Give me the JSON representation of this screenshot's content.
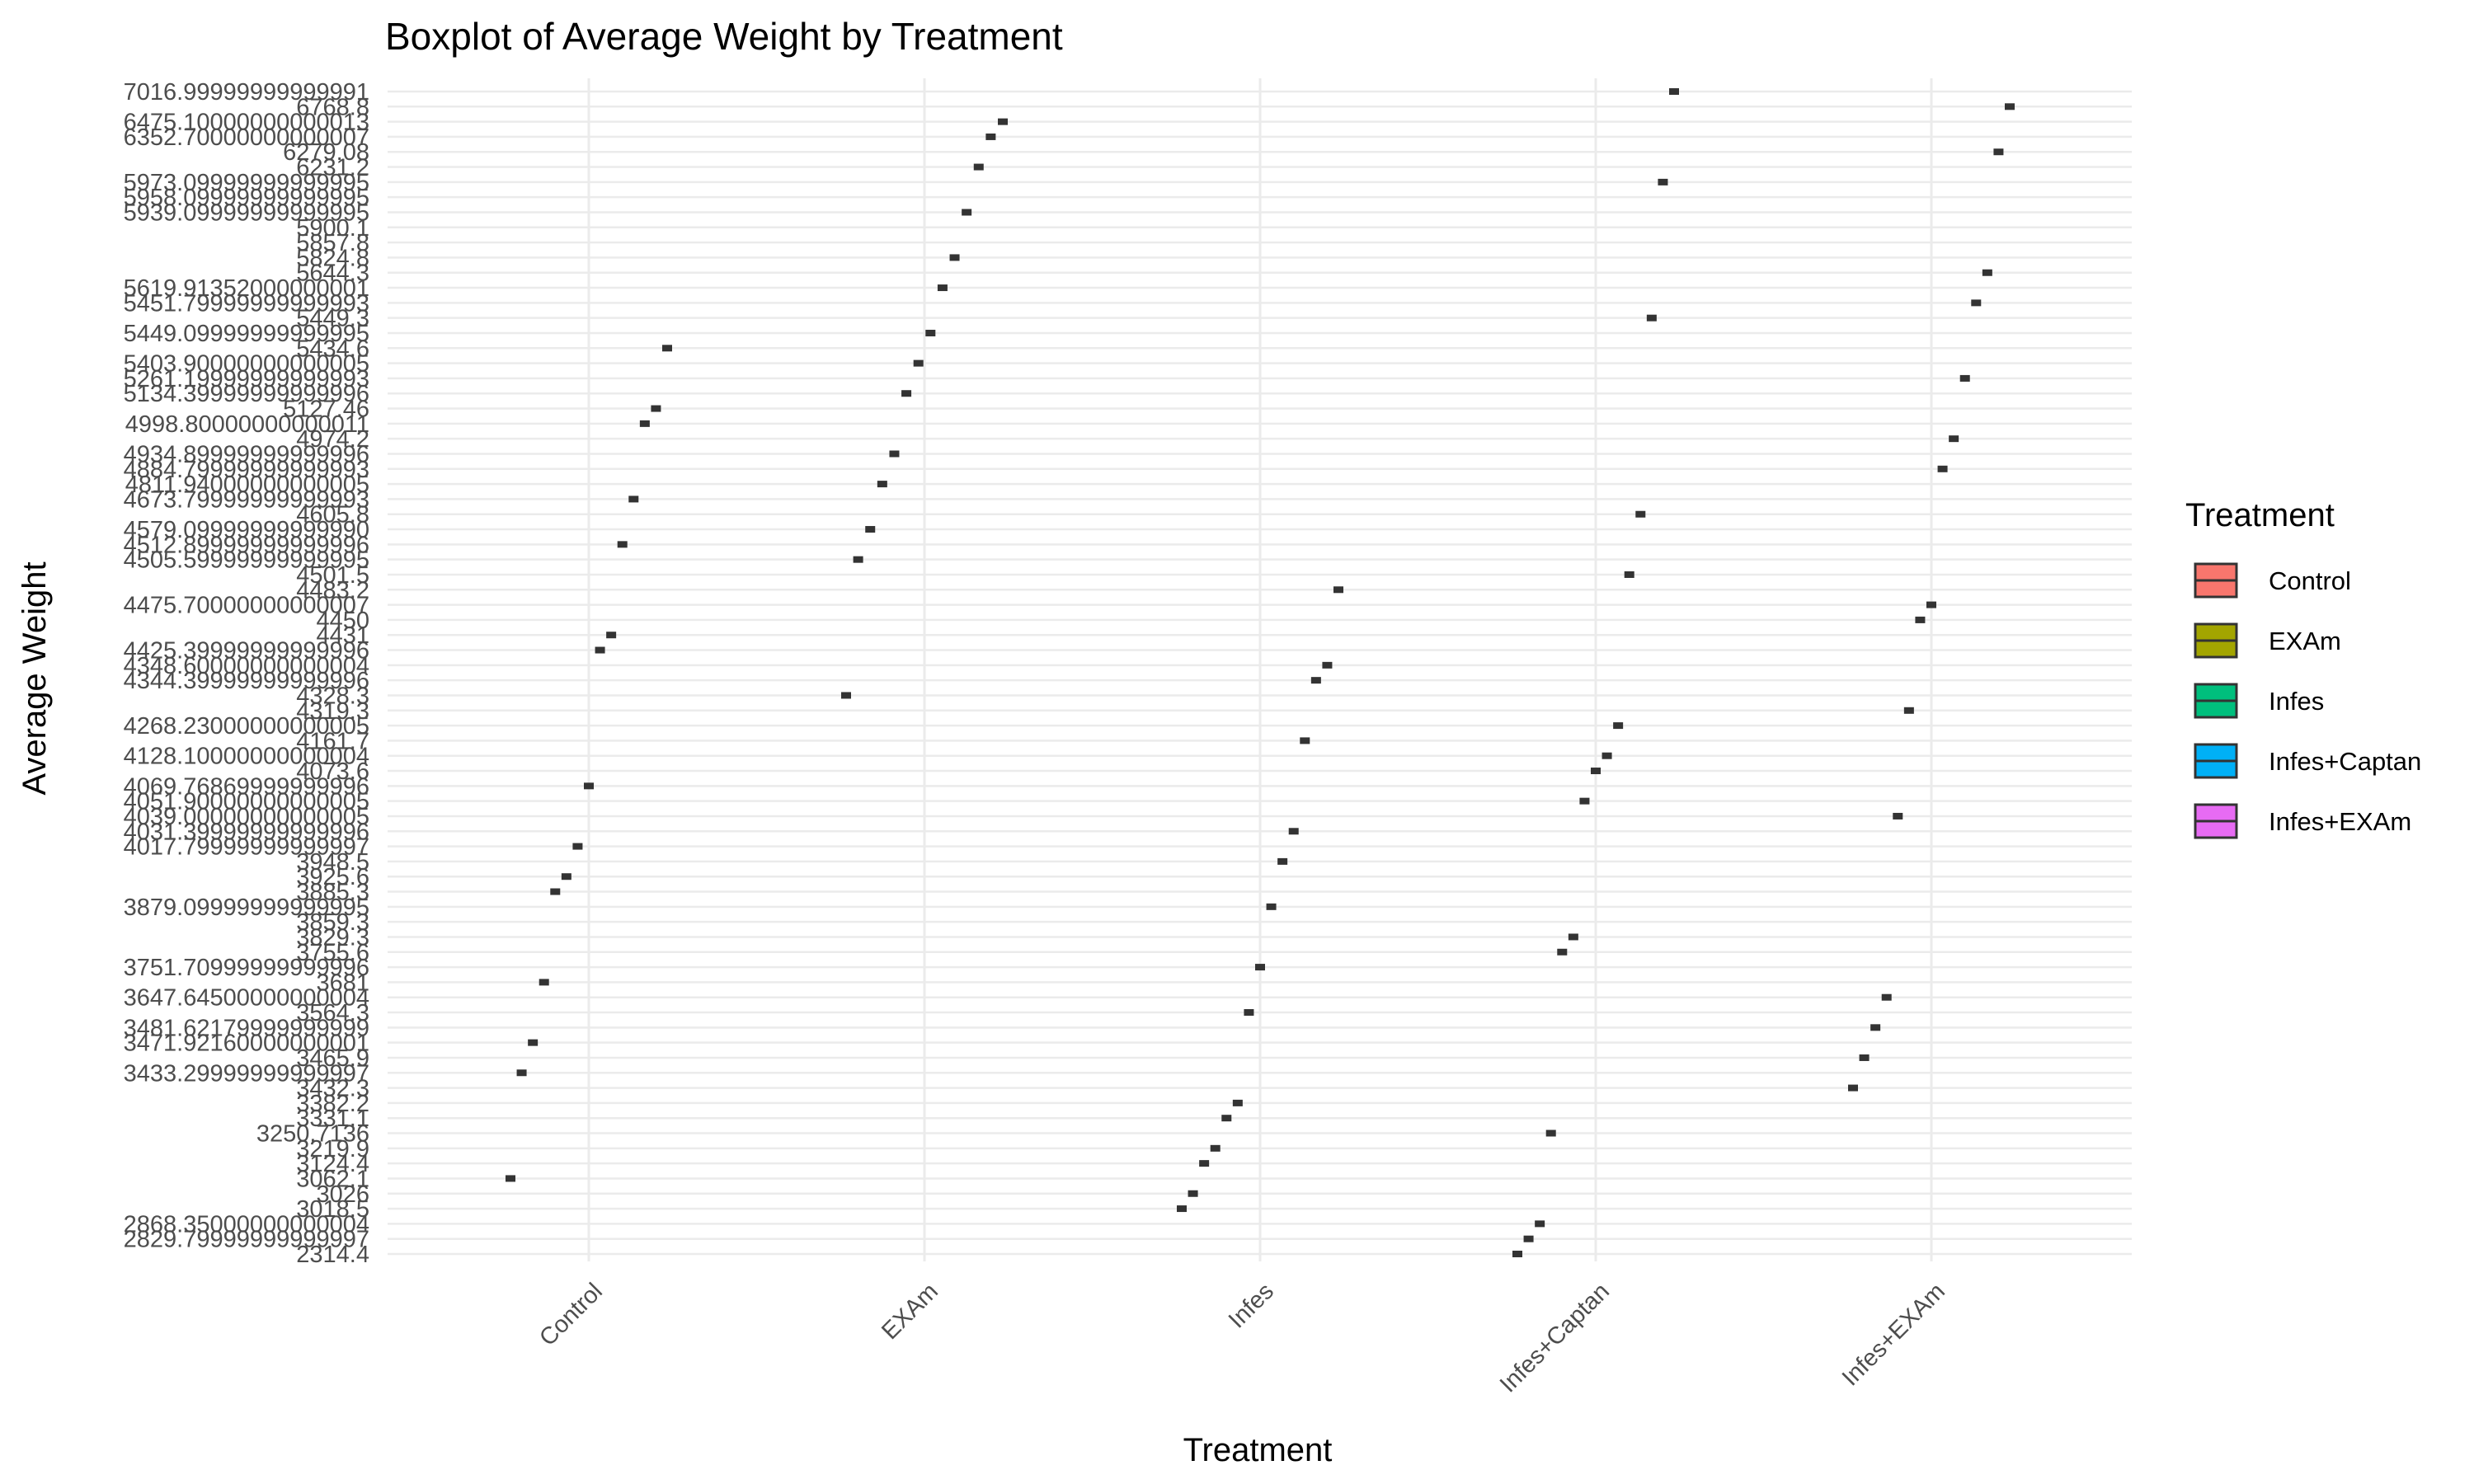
{
  "chart_data": {
    "type": "boxplot",
    "title": "Boxplot of Average Weight by Treatment",
    "xlabel": "Treatment",
    "ylabel": "Average Weight",
    "categories": [
      "Control",
      "EXAm",
      "Infes",
      "Infes+Captan",
      "Infes+EXAm"
    ],
    "y_axis_type": "discrete",
    "y_tick_labels": [
      "2314.4",
      "2829.79999999999997",
      "2868.35000000000004",
      "3018.5",
      "3026",
      "3062.1",
      "3124.4",
      "3219.9",
      "3250.7136",
      "3331.1",
      "3382.2",
      "3432.3",
      "3433.29999999999997",
      "3465.9",
      "3471.92160000000001",
      "3481.62179999999999",
      "3564.3",
      "3647.64500000000004",
      "3681",
      "3751.70999999999996",
      "3755.6",
      "3829.3",
      "3859.3",
      "3879.09999999999995",
      "3885.3",
      "3925.6",
      "3948.5",
      "4017.79999999999997",
      "4031.39999999999996",
      "4039.00000000000005",
      "4051.90000000000005",
      "4069.76869999999996",
      "4073.6",
      "4128.10000000000004",
      "4161.7",
      "4268.23000000000005",
      "4319.3",
      "4328.3",
      "4344.39999999999996",
      "4348.60000000000004",
      "4425.39999999999996",
      "4431",
      "4450",
      "4475.70000000000007",
      "4483.2",
      "4501.5",
      "4505.59999999999995",
      "4512.89999999999996",
      "4579.09999999999990",
      "4605.8",
      "4673.79999999999993",
      "4811.94000000000005",
      "4884.79999999999993",
      "4934.89999999999996",
      "4974.2",
      "4998.80000000000011",
      "5127.46",
      "5134.39999999999996",
      "5261.19999999999993",
      "5403.90000000000005",
      "5434.6",
      "5449.09999999999995",
      "5449.3",
      "5451.79999999999993",
      "5619.91352000000001",
      "5644.3",
      "5824.8",
      "5857.8",
      "5900.1",
      "5939.09999999999995",
      "5958.09999999999995",
      "5973.09999999999995",
      "6231.2",
      "6279.08",
      "6352.70000000000007",
      "6475.10000000000013",
      "6768.8",
      "7016.99999999999991"
    ],
    "groups": [
      {
        "name": "Control",
        "color": "#F8766D",
        "values": [
          "3062.1",
          "3433.29999999999997",
          "3471.92160000000001",
          "3681",
          "3885.3",
          "3925.6",
          "4017.79999999999997",
          "4069.76869999999996",
          "4425.39999999999996",
          "4431",
          "4512.89999999999996",
          "4673.79999999999993",
          "4998.80000000000011",
          "5127.46",
          "5434.6"
        ]
      },
      {
        "name": "EXAm",
        "color": "#A3A500",
        "values": [
          "4328.3",
          "4505.59999999999995",
          "4579.09999999999990",
          "4811.94000000000005",
          "4934.89999999999996",
          "5134.39999999999996",
          "5403.90000000000005",
          "5449.09999999999995",
          "5619.91352000000001",
          "5824.8",
          "5939.09999999999995",
          "6231.2",
          "6352.70000000000007",
          "6475.10000000000013"
        ]
      },
      {
        "name": "Infes",
        "color": "#00BF7D",
        "values": [
          "3018.5",
          "3026",
          "3124.4",
          "3219.9",
          "3331.1",
          "3382.2",
          "3564.3",
          "3751.70999999999996",
          "3879.09999999999995",
          "3948.5",
          "4031.39999999999996",
          "4161.7",
          "4344.39999999999996",
          "4348.60000000000004",
          "4483.2"
        ]
      },
      {
        "name": "Infes+Captan",
        "color": "#00B0F6",
        "values": [
          "2314.4",
          "2829.79999999999997",
          "2868.35000000000004",
          "3250.7136",
          "3755.6",
          "3829.3",
          "4051.90000000000005",
          "4073.6",
          "4128.10000000000004",
          "4268.23000000000005",
          "4501.5",
          "4605.8",
          "5449.3",
          "5973.09999999999995",
          "7016.99999999999991"
        ]
      },
      {
        "name": "Infes+EXAm",
        "color": "#E76BF3",
        "values": [
          "3432.3",
          "3465.9",
          "3481.62179999999999",
          "3647.64500000000004",
          "4039.00000000000005",
          "4319.3",
          "4450",
          "4475.70000000000007",
          "4884.79999999999993",
          "4974.2",
          "5261.19999999999993",
          "5451.79999999999993",
          "5644.3",
          "6279.08",
          "6768.8"
        ]
      }
    ],
    "legend": {
      "title": "Treatment",
      "position": "right",
      "entries": [
        "Control",
        "EXAm",
        "Infes",
        "Infes+Captan",
        "Infes+EXAm"
      ]
    },
    "grid": true
  }
}
